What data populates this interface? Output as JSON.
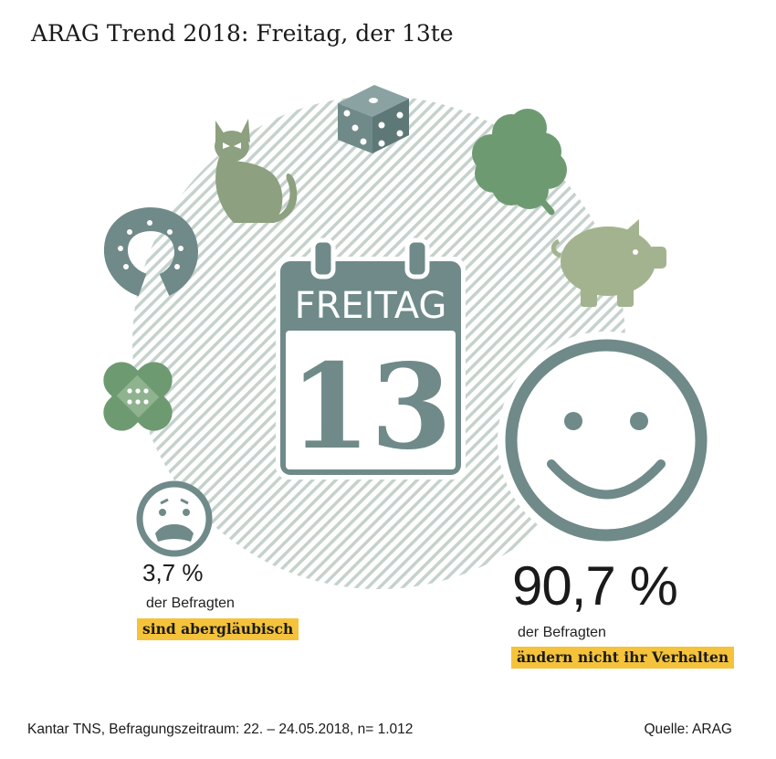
{
  "title": "ARAG Trend 2018: Freitag, der 13te",
  "calendar": {
    "month_label": "FREITAG",
    "day": "13"
  },
  "stats": [
    {
      "value": "3,7 %",
      "subject": "der Befragten",
      "highlight": "sind abergläubisch"
    },
    {
      "value": "90,7 %",
      "subject": "der Befragten",
      "highlight": "ändern nicht ihr Verhalten"
    }
  ],
  "footer": {
    "source_note": "Kantar TNS, Befragungszeitraum: 22. – 24.05.2018, n= 1.012",
    "source": "Quelle: ARAG"
  },
  "icons": [
    "dice-icon",
    "cat-icon",
    "clover-icon",
    "horseshoe-icon",
    "piggy-bank-icon",
    "plaster-icon",
    "worried-face-icon",
    "smiley-face-icon",
    "calendar-icon"
  ],
  "colors": {
    "slate": "#6f8a89",
    "sage": "#8da07f",
    "highlight": "#f5c33b",
    "hatch": "#c5d2cc"
  }
}
